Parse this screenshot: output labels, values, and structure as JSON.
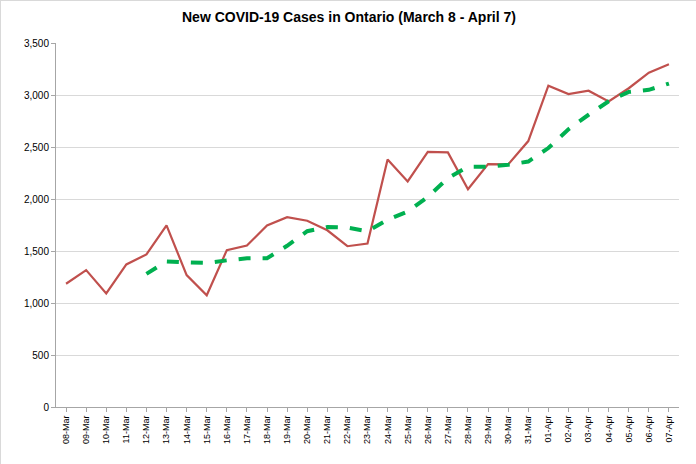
{
  "chart_data": {
    "type": "line",
    "title": "New COVID-19 Cases in Ontario (March 8 - April 7)",
    "categories": [
      "08-Mar",
      "09-Mar",
      "10-Mar",
      "11-Mar",
      "12-Mar",
      "13-Mar",
      "14-Mar",
      "15-Mar",
      "16-Mar",
      "17-Mar",
      "18-Mar",
      "19-Mar",
      "20-Mar",
      "21-Mar",
      "22-Mar",
      "23-Mar",
      "24-Mar",
      "25-Mar",
      "26-Mar",
      "27-Mar",
      "28-Mar",
      "29-Mar",
      "30-Mar",
      "31-Mar",
      "01-Apr",
      "02-Apr",
      "03-Apr",
      "04-Apr",
      "05-Apr",
      "06-Apr",
      "07-Apr"
    ],
    "series": [
      {
        "color": "#c0504d",
        "line_style": "solid",
        "values": [
          1185,
          1316,
          1092,
          1371,
          1467,
          1747,
          1268,
          1074,
          1508,
          1553,
          1745,
          1825,
          1791,
          1699,
          1546,
          1571,
          2380,
          2169,
          2453,
          2448,
          2094,
          2336,
          2333,
          2557,
          3089,
          3009,
          3041,
          2938,
          3065,
          3215,
          3295
        ]
      },
      {
        "color": "#00b050",
        "line_style": "dash",
        "values": [
          null,
          null,
          null,
          null,
          1280,
          1400,
          1390,
          1385,
          1410,
          1430,
          1430,
          1550,
          1690,
          1730,
          1725,
          1690,
          1800,
          1880,
          2020,
          2200,
          2310,
          2310,
          2330,
          2360,
          2490,
          2670,
          2810,
          2940,
          3030,
          3050,
          3110
        ]
      }
    ],
    "ylim": [
      0,
      3500
    ],
    "yticks": [
      0,
      500,
      {
        "value": 1000,
        "label": "1,000"
      },
      {
        "value": 1500,
        "label": "1,500"
      },
      {
        "value": 2000,
        "label": "2,000"
      },
      {
        "value": 2500,
        "label": "2,500"
      },
      {
        "value": 3000,
        "label": "3,000"
      },
      {
        "value": 3500,
        "label": "3,500"
      }
    ],
    "grid": true
  }
}
